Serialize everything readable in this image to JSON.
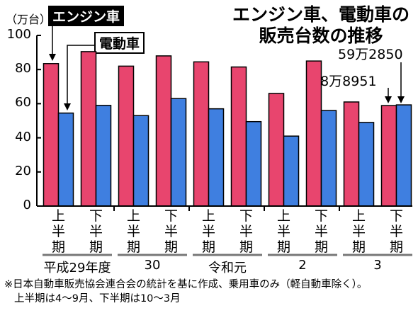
{
  "title_lines": [
    "エンジン車、電動車の",
    "販売台数の推移"
  ],
  "unit": "（万台）",
  "colors": {
    "engine": "#e8456e",
    "electric": "#3f7fe0"
  },
  "chart_data": {
    "type": "bar",
    "categories": [
      "平成29年度 上半期",
      "平成29年度 下半期",
      "30 上半期",
      "30 下半期",
      "令和元 上半期",
      "令和元 下半期",
      "2 上半期",
      "2 下半期",
      "3 上半期",
      "3 下半期"
    ],
    "series": [
      {
        "name": "エンジン車",
        "values": [
          83.5,
          90.5,
          82,
          88,
          84.5,
          81.5,
          66,
          85,
          61,
          58.9
        ]
      },
      {
        "name": "電動車",
        "values": [
          54.5,
          59,
          53,
          63,
          57,
          49.5,
          41,
          56,
          49,
          59.3
        ]
      }
    ],
    "ylim": [
      0,
      100
    ],
    "yticks": [
      "0",
      "20",
      "40",
      "60",
      "80",
      "100"
    ],
    "half_labels": [
      [
        "上",
        "半",
        "期"
      ],
      [
        "下",
        "半",
        "期"
      ]
    ],
    "year_labels": [
      "平成29年度",
      "30",
      "令和元",
      "2",
      "3"
    ],
    "annotations": [
      "59万2850",
      "58万8951"
    ]
  },
  "footnote": [
    "※日本自動車販売協会連合会の統計を基に作成、乗用車のみ（軽自動車除く）。",
    "上半期は4～9月、下半期は10～3月"
  ]
}
